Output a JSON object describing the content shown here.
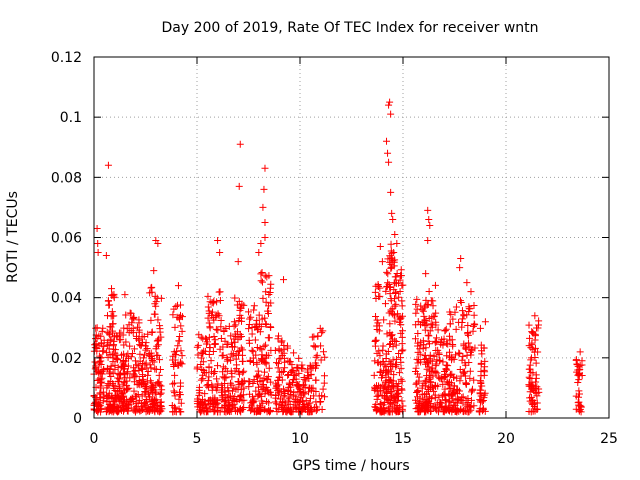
{
  "chart_data": {
    "type": "scatter",
    "title": "Day 200 of 2019, Rate Of TEC Index for receiver wntn",
    "xlabel": "GPS time / hours",
    "ylabel": "ROTI / TECUs",
    "xlim": [
      0,
      25
    ],
    "ylim": [
      0,
      0.12
    ],
    "x_ticks": [
      0,
      5,
      10,
      15,
      20,
      25
    ],
    "y_ticks": [
      0,
      0.02,
      0.04,
      0.06,
      0.08,
      0.1,
      0.12
    ],
    "x_tick_labels": [
      "0",
      "5",
      "10",
      "15",
      "20",
      "25"
    ],
    "y_tick_labels": [
      "0",
      "0.02",
      "0.04",
      "0.06",
      "0.08",
      "0.1",
      "0.12"
    ],
    "grid": true,
    "marker": "plus",
    "series_color": "#ff0000",
    "point_clusters": [
      {
        "x_range": [
          0.0,
          0.5
        ],
        "ymax": 0.03,
        "count": 90
      },
      {
        "x_range": [
          0.6,
          1.0
        ],
        "ymax": 0.042,
        "count": 90
      },
      {
        "x_range": [
          1.0,
          1.5
        ],
        "ymax": 0.03,
        "count": 90
      },
      {
        "x_range": [
          1.5,
          2.2
        ],
        "ymax": 0.035,
        "count": 90
      },
      {
        "x_range": [
          2.2,
          2.7
        ],
        "ymax": 0.028,
        "count": 70
      },
      {
        "x_range": [
          2.7,
          3.3
        ],
        "ymax": 0.045,
        "count": 100
      },
      {
        "x_range": [
          3.8,
          4.3
        ],
        "ymax": 0.038,
        "count": 60
      },
      {
        "x_range": [
          5.0,
          5.5
        ],
        "ymax": 0.028,
        "count": 60
      },
      {
        "x_range": [
          5.5,
          6.2
        ],
        "ymax": 0.042,
        "count": 90
      },
      {
        "x_range": [
          6.2,
          6.8
        ],
        "ymax": 0.032,
        "count": 80
      },
      {
        "x_range": [
          6.8,
          7.3
        ],
        "ymax": 0.04,
        "count": 80
      },
      {
        "x_range": [
          7.5,
          8.1
        ],
        "ymax": 0.038,
        "count": 80
      },
      {
        "x_range": [
          8.1,
          8.6
        ],
        "ymax": 0.05,
        "count": 80
      },
      {
        "x_range": [
          8.8,
          9.4
        ],
        "ymax": 0.028,
        "count": 70
      },
      {
        "x_range": [
          9.4,
          10.0
        ],
        "ymax": 0.022,
        "count": 70
      },
      {
        "x_range": [
          10.0,
          10.6
        ],
        "ymax": 0.018,
        "count": 60
      },
      {
        "x_range": [
          10.6,
          11.2
        ],
        "ymax": 0.03,
        "count": 40
      },
      {
        "x_range": [
          13.6,
          14.2
        ],
        "ymax": 0.045,
        "count": 100
      },
      {
        "x_range": [
          14.2,
          14.6
        ],
        "ymax": 0.06,
        "count": 100
      },
      {
        "x_range": [
          14.6,
          15.0
        ],
        "ymax": 0.05,
        "count": 80
      },
      {
        "x_range": [
          15.6,
          16.1
        ],
        "ymax": 0.04,
        "count": 90
      },
      {
        "x_range": [
          16.1,
          16.6
        ],
        "ymax": 0.045,
        "count": 90
      },
      {
        "x_range": [
          16.6,
          17.2
        ],
        "ymax": 0.03,
        "count": 70
      },
      {
        "x_range": [
          17.2,
          17.8
        ],
        "ymax": 0.04,
        "count": 80
      },
      {
        "x_range": [
          17.8,
          18.5
        ],
        "ymax": 0.04,
        "count": 80
      },
      {
        "x_range": [
          18.7,
          19.0
        ],
        "ymax": 0.03,
        "count": 40
      },
      {
        "x_range": [
          21.1,
          21.6
        ],
        "ymax": 0.033,
        "count": 70
      },
      {
        "x_range": [
          23.4,
          23.7
        ],
        "ymax": 0.02,
        "count": 35
      }
    ],
    "outlier_points": [
      [
        0.15,
        0.063
      ],
      [
        0.18,
        0.058
      ],
      [
        0.2,
        0.055
      ],
      [
        0.7,
        0.084
      ],
      [
        0.6,
        0.054
      ],
      [
        0.85,
        0.043
      ],
      [
        1.5,
        0.041
      ],
      [
        3.0,
        0.059
      ],
      [
        3.1,
        0.058
      ],
      [
        2.9,
        0.049
      ],
      [
        4.1,
        0.044
      ],
      [
        6.0,
        0.059
      ],
      [
        6.1,
        0.055
      ],
      [
        7.1,
        0.091
      ],
      [
        7.05,
        0.077
      ],
      [
        7.0,
        0.052
      ],
      [
        8.3,
        0.083
      ],
      [
        8.25,
        0.076
      ],
      [
        8.2,
        0.07
      ],
      [
        8.3,
        0.065
      ],
      [
        8.3,
        0.06
      ],
      [
        8.1,
        0.058
      ],
      [
        8.0,
        0.055
      ],
      [
        9.2,
        0.046
      ],
      [
        14.3,
        0.104
      ],
      [
        14.35,
        0.105
      ],
      [
        14.4,
        0.101
      ],
      [
        14.2,
        0.092
      ],
      [
        14.25,
        0.088
      ],
      [
        14.3,
        0.085
      ],
      [
        14.4,
        0.075
      ],
      [
        14.45,
        0.068
      ],
      [
        14.5,
        0.066
      ],
      [
        14.6,
        0.061
      ],
      [
        14.7,
        0.058
      ],
      [
        13.9,
        0.057
      ],
      [
        14.0,
        0.052
      ],
      [
        16.2,
        0.069
      ],
      [
        16.25,
        0.066
      ],
      [
        16.3,
        0.064
      ],
      [
        16.2,
        0.059
      ],
      [
        16.1,
        0.048
      ],
      [
        17.8,
        0.053
      ],
      [
        17.75,
        0.05
      ],
      [
        18.1,
        0.045
      ],
      [
        18.3,
        0.042
      ],
      [
        21.4,
        0.034
      ],
      [
        23.6,
        0.022
      ],
      [
        19.0,
        0.032
      ]
    ]
  }
}
